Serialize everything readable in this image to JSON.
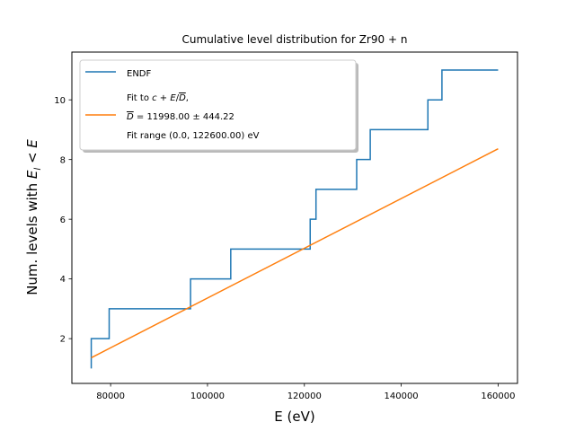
{
  "chart_data": {
    "type": "line",
    "title": "Cumulative level distribution for Zr90 + n",
    "xlabel": "E (eV)",
    "ylabel": "Num. levels with E_l < E",
    "xlim": [
      72000,
      164000
    ],
    "ylim": [
      0.5,
      11.6
    ],
    "xticks": [
      80000,
      100000,
      120000,
      140000,
      160000
    ],
    "xtick_labels": [
      "80000",
      "100000",
      "120000",
      "140000",
      "160000"
    ],
    "yticks": [
      2,
      4,
      6,
      8,
      10
    ],
    "ytick_labels": [
      "2",
      "4",
      "6",
      "8",
      "10"
    ],
    "grid": false,
    "legend_placement": "upper left",
    "series": [
      {
        "name": "ENDF",
        "style": "step",
        "color": "#1f77b4",
        "x": [
          76000,
          76000,
          79700,
          79700,
          96500,
          96500,
          104800,
          104800,
          121200,
          121200,
          122400,
          122400,
          130800,
          130800,
          133600,
          133600,
          145500,
          145500,
          148400,
          148400,
          160000
        ],
        "y": [
          1,
          2,
          2,
          3,
          3,
          4,
          4,
          5,
          5,
          6,
          6,
          7,
          7,
          8,
          8,
          9,
          9,
          10,
          10,
          11,
          11
        ]
      },
      {
        "name": "Fit",
        "style": "line",
        "color": "#ff7f0e",
        "x": [
          76000,
          160000
        ],
        "y": [
          1.36,
          8.36
        ]
      }
    ],
    "legend": {
      "entries": [
        {
          "series": 0,
          "lines": [
            {
              "segments": [
                {
                  "t": "ENDF"
                }
              ]
            }
          ]
        },
        {
          "series": 1,
          "lines": [
            {
              "segments": [
                {
                  "t": "Fit to "
                },
                {
                  "t": "c",
                  "italic": true
                },
                {
                  "t": " + "
                },
                {
                  "t": "E",
                  "italic": true
                },
                {
                  "t": "/"
                },
                {
                  "t": "D",
                  "italic": true,
                  "overline": true
                },
                {
                  "t": ","
                }
              ]
            },
            {
              "segments": [
                {
                  "t": "D",
                  "italic": true,
                  "overline": true
                },
                {
                  "t": " = 11998.00 ± 444.22"
                }
              ]
            },
            {
              "segments": [
                {
                  "t": "Fit range (0.0, 122600.00) eV"
                }
              ]
            }
          ]
        }
      ]
    }
  }
}
